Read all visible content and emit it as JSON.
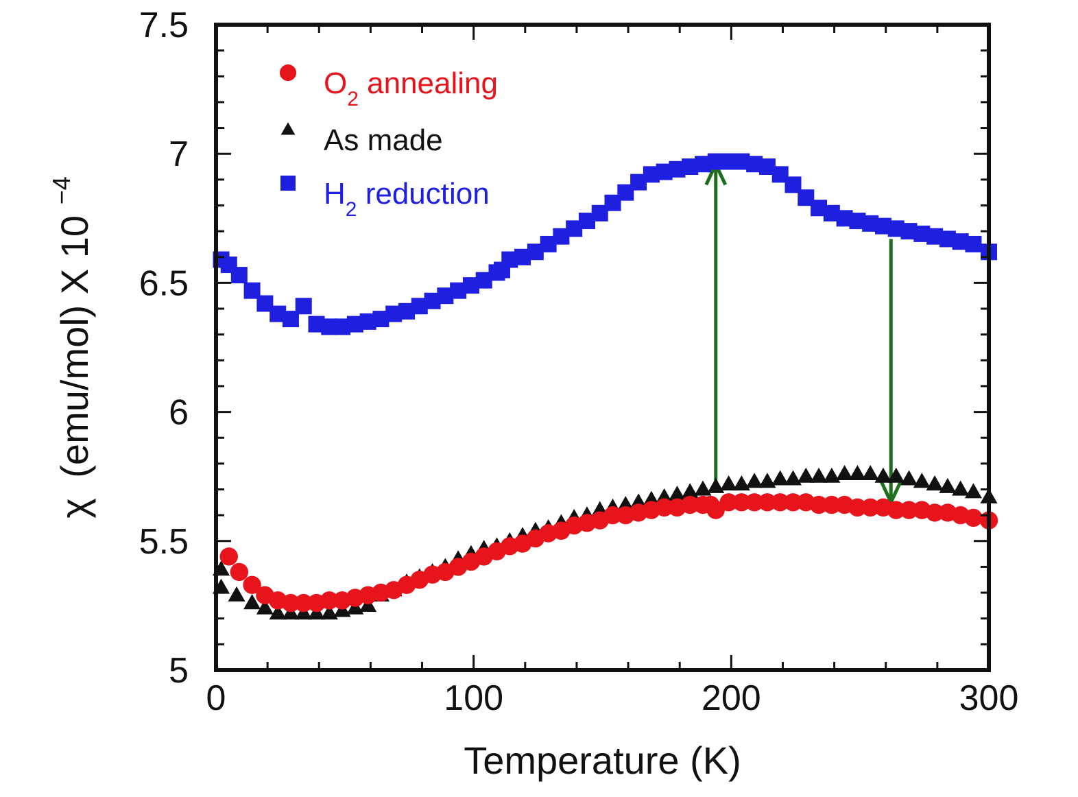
{
  "chart_data": {
    "type": "scatter",
    "xlabel": "Temperature (K)",
    "ylabel": {
      "symbol": "χ",
      "text": "(emu/mol) X 10",
      "exponent": "−4"
    },
    "xlim": [
      0,
      300
    ],
    "ylim": [
      5,
      7.5
    ],
    "x_ticks": [
      "0",
      "100",
      "200",
      "300"
    ],
    "y_ticks": [
      "5",
      "5.5",
      "6",
      "6.5",
      "7",
      "7.5"
    ],
    "x_tick_values": [
      0,
      100,
      200,
      300
    ],
    "y_tick_values": [
      5,
      5.5,
      6,
      6.5,
      7,
      7.5
    ],
    "grid": false,
    "legend_position": "top-left",
    "series": [
      {
        "name": "O",
        "name_sub": "2",
        "name_rest": " annealing",
        "color": "#e8141c",
        "marker": "circle",
        "x": [
          5,
          9,
          14,
          19,
          24,
          29,
          34,
          39,
          44,
          49,
          54,
          59,
          64,
          69,
          74,
          79,
          84,
          89,
          94,
          99,
          104,
          109,
          114,
          119,
          124,
          129,
          134,
          139,
          144,
          149,
          154,
          159,
          164,
          169,
          174,
          179,
          184,
          189,
          192,
          194,
          199,
          204,
          209,
          214,
          219,
          224,
          229,
          234,
          239,
          244,
          249,
          254,
          259,
          264,
          269,
          274,
          279,
          284,
          289,
          294,
          300
        ],
        "y": [
          5.44,
          5.38,
          5.33,
          5.29,
          5.27,
          5.26,
          5.26,
          5.26,
          5.27,
          5.27,
          5.28,
          5.29,
          5.3,
          5.31,
          5.33,
          5.35,
          5.37,
          5.38,
          5.4,
          5.42,
          5.44,
          5.46,
          5.48,
          5.49,
          5.51,
          5.53,
          5.54,
          5.56,
          5.57,
          5.58,
          5.6,
          5.6,
          5.61,
          5.62,
          5.63,
          5.63,
          5.64,
          5.64,
          5.64,
          5.62,
          5.65,
          5.65,
          5.65,
          5.65,
          5.65,
          5.65,
          5.65,
          5.64,
          5.64,
          5.64,
          5.63,
          5.63,
          5.63,
          5.62,
          5.62,
          5.62,
          5.61,
          5.61,
          5.6,
          5.59,
          5.58
        ]
      },
      {
        "name": "As  made",
        "name_sub": "",
        "name_rest": "",
        "color": "#111111",
        "marker": "triangle",
        "x": [
          2,
          2,
          8,
          14,
          19,
          24,
          29,
          34,
          39,
          44,
          49,
          54,
          59,
          64,
          69,
          74,
          79,
          84,
          89,
          94,
          99,
          104,
          109,
          114,
          119,
          124,
          129,
          134,
          139,
          144,
          149,
          154,
          159,
          164,
          169,
          174,
          179,
          184,
          189,
          194,
          199,
          204,
          209,
          214,
          219,
          224,
          229,
          234,
          239,
          244,
          249,
          254,
          259,
          264,
          269,
          274,
          279,
          284,
          289,
          294,
          300
        ],
        "y": [
          5.39,
          5.32,
          5.29,
          5.26,
          5.24,
          5.22,
          5.22,
          5.22,
          5.22,
          5.22,
          5.23,
          5.24,
          5.25,
          5.29,
          5.31,
          5.34,
          5.36,
          5.38,
          5.4,
          5.43,
          5.45,
          5.47,
          5.48,
          5.5,
          5.52,
          5.54,
          5.55,
          5.57,
          5.59,
          5.6,
          5.62,
          5.63,
          5.64,
          5.65,
          5.66,
          5.67,
          5.68,
          5.69,
          5.7,
          5.71,
          5.72,
          5.72,
          5.73,
          5.73,
          5.74,
          5.74,
          5.75,
          5.75,
          5.75,
          5.76,
          5.76,
          5.76,
          5.75,
          5.75,
          5.74,
          5.73,
          5.72,
          5.71,
          5.7,
          5.69,
          5.67
        ]
      },
      {
        "name": "H",
        "name_sub": "2",
        "name_rest": " reduction",
        "color": "#1f1fe0",
        "marker": "square",
        "x": [
          2,
          5,
          9,
          14,
          19,
          24,
          29,
          34,
          39,
          44,
          49,
          54,
          59,
          64,
          69,
          74,
          79,
          84,
          89,
          94,
          99,
          104,
          109,
          111,
          114,
          119,
          124,
          129,
          134,
          139,
          144,
          149,
          154,
          159,
          164,
          169,
          174,
          179,
          184,
          189,
          194,
          199,
          204,
          209,
          214,
          219,
          224,
          229,
          234,
          239,
          244,
          249,
          254,
          259,
          264,
          269,
          274,
          279,
          284,
          289,
          294,
          300
        ],
        "y": [
          6.59,
          6.57,
          6.53,
          6.47,
          6.42,
          6.38,
          6.36,
          6.41,
          6.34,
          6.33,
          6.33,
          6.34,
          6.35,
          6.36,
          6.38,
          6.39,
          6.41,
          6.43,
          6.45,
          6.47,
          6.49,
          6.51,
          6.54,
          6.55,
          6.59,
          6.6,
          6.62,
          6.65,
          6.68,
          6.71,
          6.74,
          6.77,
          6.81,
          6.85,
          6.89,
          6.92,
          6.93,
          6.94,
          6.95,
          6.96,
          6.97,
          6.97,
          6.97,
          6.96,
          6.95,
          6.92,
          6.88,
          6.83,
          6.79,
          6.77,
          6.75,
          6.74,
          6.73,
          6.72,
          6.71,
          6.7,
          6.69,
          6.68,
          6.67,
          6.66,
          6.65,
          6.62
        ]
      }
    ],
    "annotations": [
      {
        "type": "arrow",
        "direction": "up",
        "x": 194,
        "y_from": 5.73,
        "y_to": 6.96,
        "color": "#1e6e1e"
      },
      {
        "type": "arrow",
        "direction": "down",
        "x": 262,
        "y_from": 6.67,
        "y_to": 5.65,
        "color": "#1e6e1e"
      }
    ]
  }
}
